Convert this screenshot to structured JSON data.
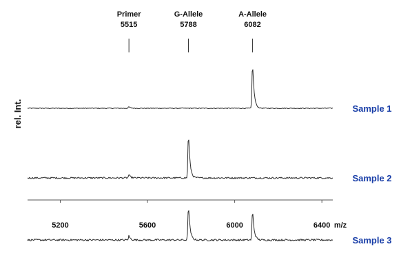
{
  "chart_data": {
    "type": "line",
    "title": "",
    "xlabel": "m/z",
    "ylabel": "rel. Int.",
    "xlim": [
      5050,
      6450
    ],
    "x_ticks": [
      5200,
      5600,
      6000,
      6400
    ],
    "x_tick_labels": [
      "5200",
      "5600",
      "6000",
      "6400"
    ],
    "grid": false,
    "peak_annotations": [
      {
        "line1": "Primer",
        "line2": "5515",
        "mz": 5515
      },
      {
        "line1": "G-Allele",
        "line2": "5788",
        "mz": 5788
      },
      {
        "line1": "A-Allele",
        "line2": "6082",
        "mz": 6082
      }
    ],
    "series": [
      {
        "name": "Sample 1",
        "noise": 0.015,
        "peaks": [
          {
            "mz": 6082,
            "height": 0.92
          },
          {
            "mz": 5515,
            "height": 0.03
          }
        ]
      },
      {
        "name": "Sample 2",
        "noise": 0.03,
        "peaks": [
          {
            "mz": 5788,
            "height": 0.9
          },
          {
            "mz": 5515,
            "height": 0.06
          }
        ]
      },
      {
        "name": "Sample 3",
        "noise": 0.035,
        "peaks": [
          {
            "mz": 5788,
            "height": 0.7
          },
          {
            "mz": 6082,
            "height": 0.6
          },
          {
            "mz": 5515,
            "height": 0.08
          }
        ]
      }
    ],
    "label_color": "#1a3fa8"
  }
}
